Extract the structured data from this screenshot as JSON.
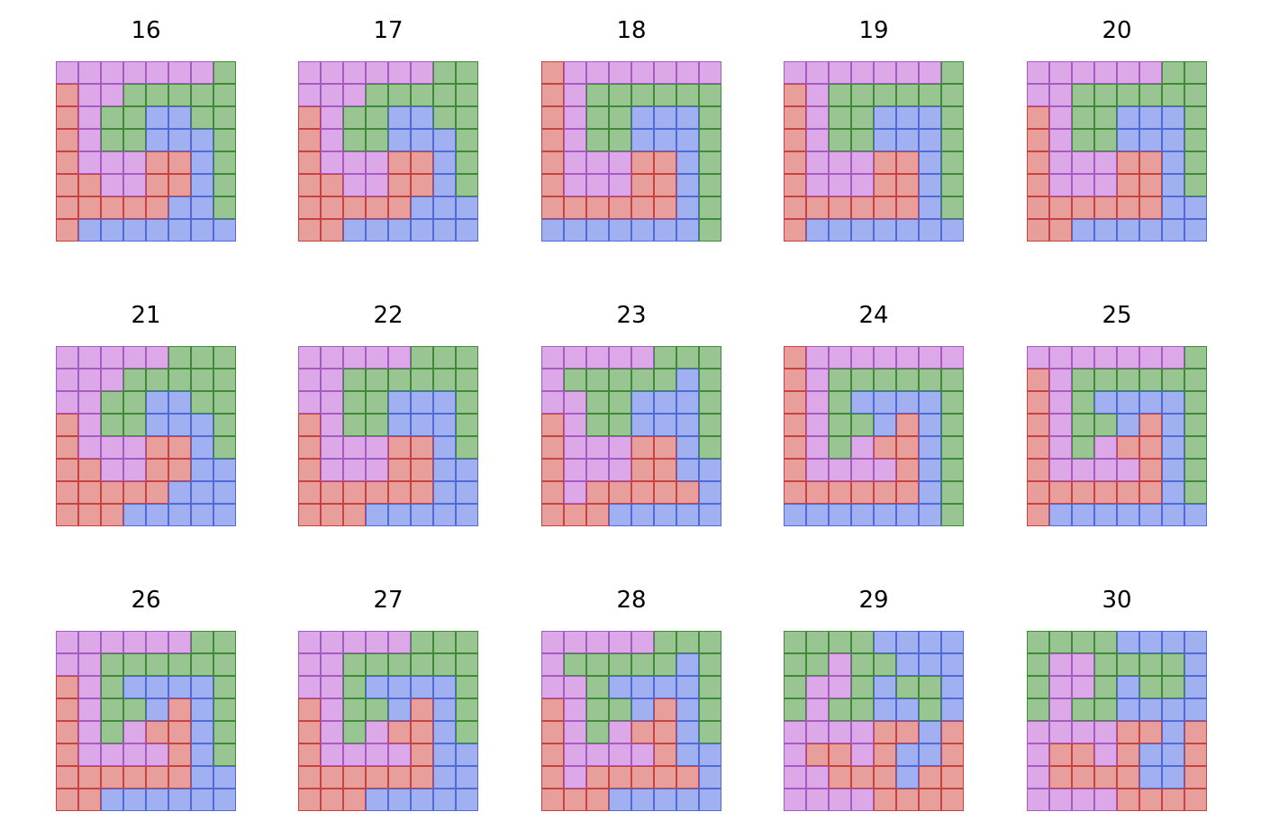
{
  "colors": {
    "P": {
      "fill": "#DCA8E8",
      "stroke": "#A55BC2"
    },
    "G": {
      "fill": "#98C592",
      "stroke": "#3E8A36"
    },
    "B": {
      "fill": "#A0B0F1",
      "stroke": "#5269D9"
    },
    "R": {
      "fill": "#E89E9B",
      "stroke": "#C84340"
    }
  },
  "panels": [
    {
      "title": "16",
      "rows": [
        "PPPPPPPG",
        "RPPGGGGG",
        "RPGGBBGG",
        "RPGGBBBG",
        "RPPPRRBG",
        "RRPPRRBG",
        "RRRRRBBG",
        "RBBBBBBB"
      ]
    },
    {
      "title": "17",
      "rows": [
        "PPPPPPGG",
        "PPPGGGGG",
        "RPGGBBGG",
        "RPGGBBBG",
        "RPPPRRBG",
        "RRPPRRBG",
        "RRRRRBBB",
        "RRBBBBBB"
      ]
    },
    {
      "title": "18",
      "rows": [
        "RPPPPPPP",
        "RPGGGGGG",
        "RPGGBBBG",
        "RPGGBBBG",
        "RPPPRRBG",
        "RPPPRRBG",
        "RRRRRRBG",
        "BBBBBBBG"
      ]
    },
    {
      "title": "19",
      "rows": [
        "PPPPPPPG",
        "RPGGGGGG",
        "RPGGBBBG",
        "RPGGBBBG",
        "RPPPRRBG",
        "RPPPRRBG",
        "RRRRRRBG",
        "RBBBBBBB"
      ]
    },
    {
      "title": "20",
      "rows": [
        "PPPPPPGG",
        "PPGGGGGG",
        "RPGGBBBG",
        "RPGGBBBG",
        "RPPPRRBG",
        "RPPPRRBG",
        "RRRRRRBB",
        "RRBBBBBB"
      ]
    },
    {
      "title": "21",
      "rows": [
        "PPPPPGGG",
        "PPPGGGGG",
        "PPGGBBGG",
        "RPGGBBBG",
        "RPPPRRBG",
        "RRPPRRBB",
        "RRRRRBBB",
        "RRRBBBBB"
      ]
    },
    {
      "title": "22",
      "rows": [
        "PPPPPGGG",
        "PPGGGGGG",
        "PPGGBBBG",
        "RPGGBBBG",
        "RPPPRRBG",
        "RPPPRRBB",
        "RRRRRRBB",
        "RRRBBBBB"
      ]
    },
    {
      "title": "23",
      "rows": [
        "PPPPPGGG",
        "PGGGGGBG",
        "PPGGBBBG",
        "RPGGBBBG",
        "RPPPRRBG",
        "RPPPRRBB",
        "RPRRRRRB",
        "RRRBBBBB"
      ]
    },
    {
      "title": "24",
      "rows": [
        "RPPPPPPP",
        "RPGGGGGG",
        "RPGBBBBG",
        "RPGGBRBG",
        "RPGPRRBG",
        "RPPPPRBG",
        "RRRRRRBG",
        "BBBBBBBG"
      ]
    },
    {
      "title": "25",
      "rows": [
        "PPPPPPPG",
        "RPGGGGGG",
        "RPGBBBBG",
        "RPGGBRBG",
        "RPGPRRBG",
        "RPPPPRBG",
        "RRRRRRBG",
        "RBBBBBBB"
      ]
    },
    {
      "title": "26",
      "rows": [
        "PPPPPPGG",
        "PPGGGGGG",
        "RPGBBBBG",
        "RPGGBRBG",
        "RPGPRRBG",
        "RPPPPRBG",
        "RRRRRRBB",
        "RRBBBBBB"
      ]
    },
    {
      "title": "27",
      "rows": [
        "PPPPPGGG",
        "PPGGGGGG",
        "PPGBBBBG",
        "RPGGBRBG",
        "RPGPRRBG",
        "RPPPPRBB",
        "RRRRRRBB",
        "RRRBBBBB"
      ]
    },
    {
      "title": "28",
      "rows": [
        "PPPPPGGG",
        "PGGGGGBG",
        "PPGBBBBG",
        "RPGGBRBG",
        "RPGPRRBG",
        "RPPPPRBB",
        "RPRRRRRB",
        "RRRBBBBB"
      ]
    },
    {
      "title": "29",
      "rows": [
        "GGGGBBBB",
        "GGPGGBBB",
        "GPPGBGGB",
        "GPGGBBGB",
        "PPPPRRBR",
        "PRRPRBBR",
        "PPRRRBRR",
        "PPPPRRRR"
      ]
    },
    {
      "title": "30",
      "rows": [
        "GGGGBBBB",
        "GPPGGGGB",
        "GPPGBGGB",
        "GPGGBBBB",
        "PPPPRRBR",
        "PRRPRBBR",
        "PRRRRBBR",
        "PPPPRRRR"
      ]
    }
  ]
}
